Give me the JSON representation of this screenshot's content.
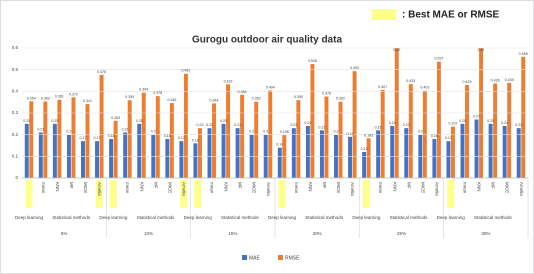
{
  "chart_data": {
    "type": "bar",
    "title": "Gurogu outdoor air quality data",
    "highlight_legend": ": Best MAE or RMSE",
    "highlight_color": "#ffff8c",
    "categories": [
      null,
      "mean",
      "KNN",
      "MF",
      "MICE",
      "Amelia",
      null,
      "mean",
      "KNN",
      "MF",
      "MICE",
      "Amelia",
      null,
      "mean",
      "KNN",
      "MF",
      "MICE",
      "Amelia",
      null,
      "mean",
      "KNN",
      "MF",
      "MICE",
      "Amelia",
      null,
      "mean",
      "KNN",
      "MF",
      "MICE",
      "Amelia",
      null,
      "mean",
      "KNN",
      "MF",
      "MICE",
      "Amelia"
    ],
    "highlighted": [
      true,
      false,
      false,
      false,
      false,
      true,
      true,
      false,
      false,
      false,
      false,
      true,
      true,
      false,
      false,
      false,
      false,
      false,
      true,
      false,
      false,
      false,
      false,
      false,
      true,
      false,
      false,
      false,
      false,
      false,
      true,
      false,
      false,
      false,
      false,
      false
    ],
    "sections": [
      "Deep learning",
      "Statistical methods"
    ],
    "groups": [
      "5%",
      "10%",
      "15%",
      "20%",
      "25%",
      "30%"
    ],
    "series": [
      {
        "name": "MAE",
        "color": "#4472c4",
        "values": [
          0.25,
          0.21,
          0.25,
          0.2,
          0.17,
          0.17,
          0.18,
          0.21,
          0.25,
          0.2,
          0.18,
          0.17,
          0.16,
          0.23,
          0.25,
          0.23,
          0.2,
          0.2,
          0.14,
          0.23,
          0.24,
          0.22,
          0.2,
          0.19,
          0.12,
          0.22,
          0.24,
          0.23,
          0.2,
          0.18,
          0.17,
          0.25,
          0.27,
          0.25,
          0.24,
          0.23
        ]
      },
      {
        "name": "RMSE",
        "color": "#ed7d31",
        "values": [
          0.354,
          0.353,
          0.361,
          0.372,
          0.341,
          0.476,
          0.264,
          0.359,
          0.394,
          0.378,
          0.346,
          0.481,
          0.23,
          0.344,
          0.432,
          0.384,
          0.352,
          0.404,
          0.198,
          0.359,
          0.526,
          0.376,
          0.352,
          0.493,
          0.183,
          0.407,
          0.62,
          0.433,
          0.403,
          0.537,
          0.237,
          0.429,
          0.61,
          0.436,
          0.439,
          0.559
        ]
      }
    ],
    "ylim": [
      0,
      0.6
    ],
    "yticks": [
      0,
      0.1,
      0.2,
      0.3,
      0.4,
      0.5,
      0.6
    ],
    "grid": true
  }
}
